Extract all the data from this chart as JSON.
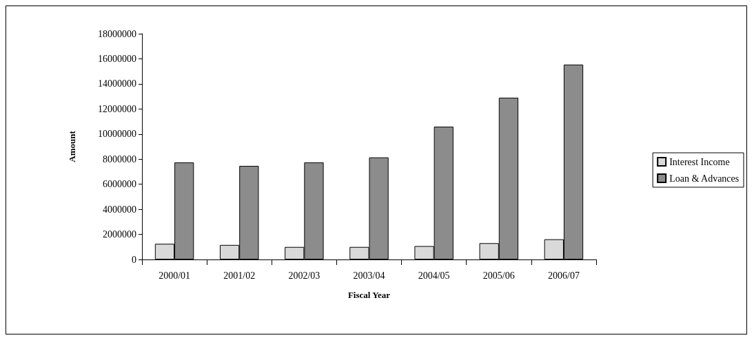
{
  "chart_data": {
    "type": "bar",
    "xlabel": "Fiscal Year",
    "ylabel": "Amount",
    "categories": [
      "2000/01",
      "2001/02",
      "2002/03",
      "2003/04",
      "2004/05",
      "2005/06",
      "2006/07"
    ],
    "series": [
      {
        "name": "Interest Income",
        "color": "#d9d9d9",
        "values": [
          1250000,
          1160000,
          1000000,
          1000000,
          1070000,
          1300000,
          1610000
        ]
      },
      {
        "name": "Loan & Advances",
        "color": "#8c8c8c",
        "values": [
          7740000,
          7460000,
          7740000,
          8140000,
          10590000,
          12900000,
          15540000
        ]
      }
    ],
    "ylim": [
      0,
      18000000
    ],
    "yticks": [
      0,
      2000000,
      4000000,
      6000000,
      8000000,
      10000000,
      12000000,
      14000000,
      16000000,
      18000000
    ],
    "grid": false,
    "legend": "right"
  }
}
